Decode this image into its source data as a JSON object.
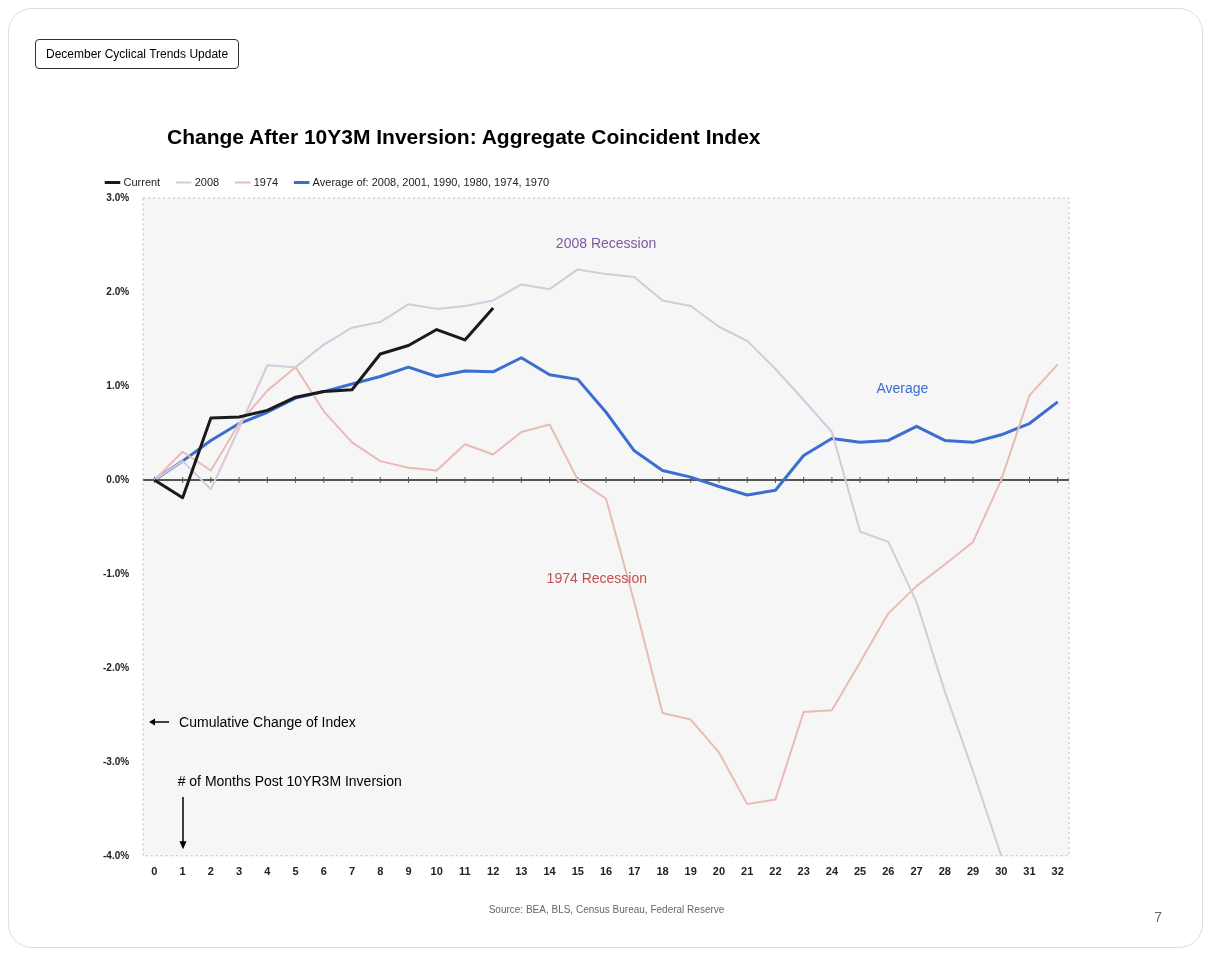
{
  "chart_data": {
    "type": "line",
    "title": "Change After 10Y3M Inversion: Aggregate Coincident Index",
    "subtitle": "December Cyclical Trends Update",
    "xlabel": "# of Months Post 10YR3M Inversion",
    "ylabel": "Cumulative Change of Index",
    "x": [
      0,
      1,
      2,
      3,
      4,
      5,
      6,
      7,
      8,
      9,
      10,
      11,
      12,
      13,
      14,
      15,
      16,
      17,
      18,
      19,
      20,
      21,
      22,
      23,
      24,
      25,
      26,
      27,
      28,
      29,
      30,
      31,
      32
    ],
    "series": [
      {
        "name": "Current",
        "color": "#1a1a1a",
        "values": [
          0,
          -0.19,
          0.66,
          0.67,
          0.74,
          0.88,
          0.94,
          0.96,
          1.34,
          1.43,
          1.6,
          1.49,
          1.83,
          null,
          null,
          null,
          null,
          null,
          null,
          null,
          null,
          null,
          null,
          null,
          null,
          null,
          null,
          null,
          null,
          null,
          null,
          null,
          null
        ]
      },
      {
        "name": "2008",
        "color": "#d8c8dc",
        "values": [
          0,
          0.2,
          -0.1,
          0.55,
          1.22,
          1.2,
          1.44,
          1.62,
          1.68,
          1.87,
          1.82,
          1.85,
          1.91,
          2.08,
          2.03,
          2.24,
          2.19,
          2.16,
          1.91,
          1.85,
          1.63,
          1.48,
          1.18,
          0.85,
          0.51,
          -0.55,
          -0.66,
          -1.3,
          -2.25,
          -3.1,
          -4.0,
          null,
          null
        ]
      },
      {
        "name": "1974",
        "color": "#e8bcb4",
        "values": [
          0,
          0.3,
          0.1,
          0.6,
          0.95,
          1.2,
          0.73,
          0.4,
          0.2,
          0.13,
          0.1,
          0.38,
          0.27,
          0.51,
          0.59,
          0,
          -0.2,
          -1.3,
          -2.48,
          -2.55,
          -2.9,
          -3.45,
          -3.4,
          -2.47,
          -2.45,
          -1.94,
          -1.42,
          -1.13,
          -0.9,
          -0.66,
          0,
          0.9,
          1.23
        ]
      },
      {
        "name": "Average of: 2008, 2001, 1990, 1980, 1974, 1970",
        "color": "#3a6fd0",
        "values": [
          0,
          0.2,
          0.42,
          0.6,
          0.72,
          0.87,
          0.94,
          1.02,
          1.1,
          1.2,
          1.1,
          1.16,
          1.15,
          1.3,
          1.12,
          1.07,
          0.72,
          0.31,
          0.1,
          0.03,
          -0.07,
          -0.16,
          -0.11,
          0.26,
          0.44,
          0.4,
          0.42,
          0.57,
          0.42,
          0.4,
          0.48,
          0.6,
          0.83
        ]
      }
    ],
    "xlim": [
      -0.4,
      32.4
    ],
    "xticks": [
      0,
      1,
      2,
      3,
      4,
      5,
      6,
      7,
      8,
      9,
      10,
      11,
      12,
      13,
      14,
      15,
      16,
      17,
      18,
      19,
      20,
      21,
      22,
      23,
      24,
      25,
      26,
      27,
      28,
      29,
      30,
      31,
      32
    ],
    "ylim": [
      -4,
      3
    ],
    "yticks": [
      {
        "value": -4,
        "label": "-4.0%"
      },
      {
        "value": -3,
        "label": "-3.0%"
      },
      {
        "value": -2,
        "label": "-2.0%"
      },
      {
        "value": -1,
        "label": "-1.0%"
      },
      {
        "value": 0,
        "label": "0.0%"
      },
      {
        "value": 1,
        "label": "1.0%"
      },
      {
        "value": 2,
        "label": "2.0%"
      },
      {
        "value": 3,
        "label": "3.0%"
      }
    ],
    "ref_lines": [
      {
        "axis": "y",
        "value": 0,
        "color": "#555555"
      }
    ],
    "annotations": [
      "2008 Recession",
      "Average",
      "1974 Recession",
      "Source: BEA, BLS, Census Bureau, Federal Reserve",
      "7"
    ],
    "grid": false,
    "legend": "top left",
    "marker": "none",
    "line_style": "solid"
  }
}
